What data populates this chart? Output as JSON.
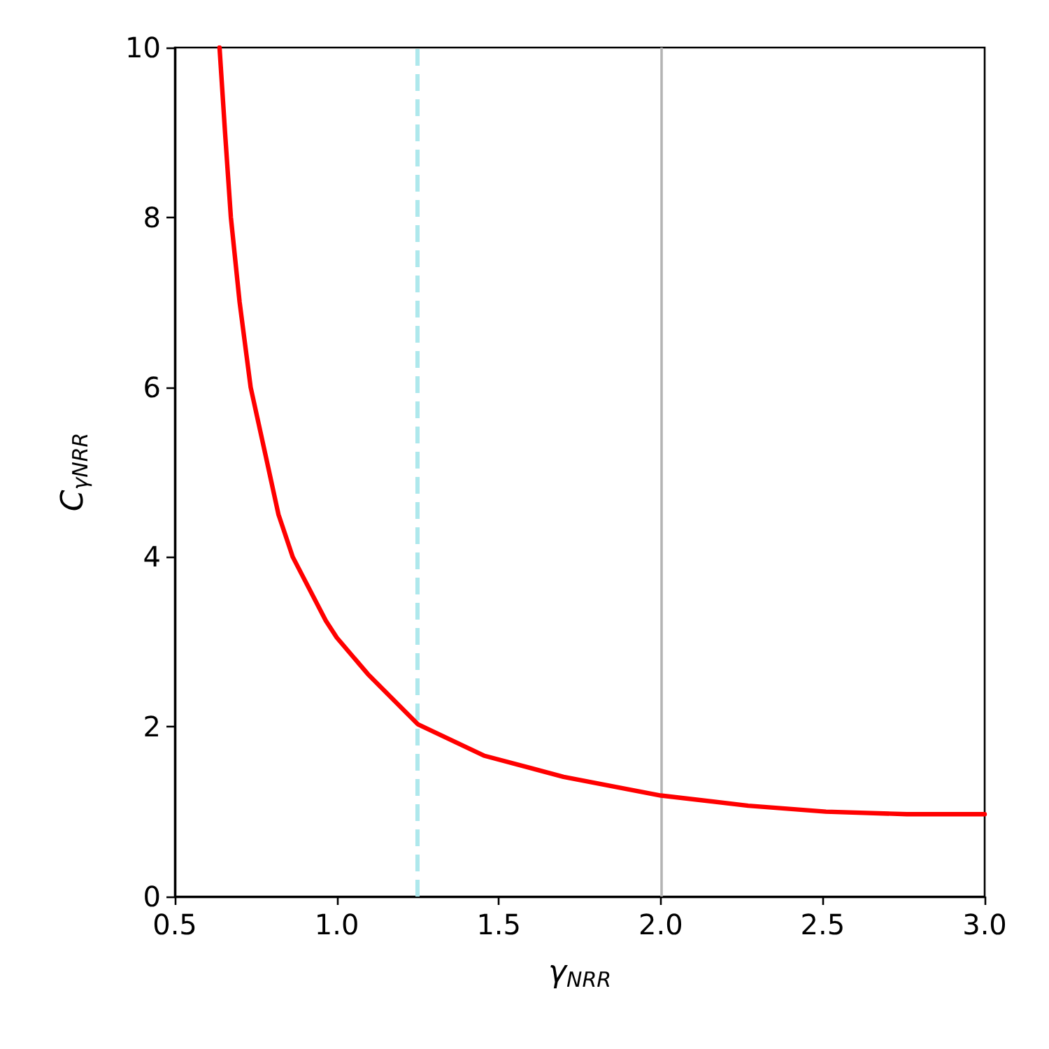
{
  "chart_data": {
    "type": "line",
    "xlabel": "γ$_{NRR}$",
    "ylabel": "C$_{γNRR}$",
    "series": [
      {
        "color": "#ff0000",
        "x": [
          0.638,
          0.655,
          0.673,
          0.7,
          0.734,
          0.78,
          0.82,
          0.864,
          0.966,
          1.0,
          1.096,
          1.25,
          1.454,
          1.7,
          2.0,
          2.27,
          2.51,
          2.76,
          3.0
        ],
        "values": [
          10,
          9,
          8,
          7,
          6,
          5.2,
          4.5,
          4.0,
          3.25,
          3.05,
          2.62,
          2.03,
          1.66,
          1.41,
          1.19,
          1.07,
          1.0,
          0.97,
          0.97
        ]
      }
    ],
    "xlim": [
      0.5,
      3.0
    ],
    "ylim": [
      0,
      10
    ],
    "xticks": [
      {
        "value": 0.5,
        "label": "0.5"
      },
      {
        "value": 1,
        "label": "1.0"
      },
      {
        "value": 1.5,
        "label": "1.5"
      },
      {
        "value": 2,
        "label": "2.0"
      },
      {
        "value": 2.5,
        "label": "2.5"
      },
      {
        "value": 3,
        "label": "3.0"
      }
    ],
    "yticks": [
      0,
      2,
      4,
      6,
      8,
      10
    ],
    "ref_lines": [
      {
        "axis": "x",
        "value": 1.25,
        "color": "#aee8ec",
        "line_style": "dashed"
      },
      {
        "axis": "x",
        "value": 2.0,
        "color": "#b4b4b4",
        "line_style": "solid"
      }
    ],
    "marker": "none",
    "line_style": "solid",
    "grid": false
  }
}
